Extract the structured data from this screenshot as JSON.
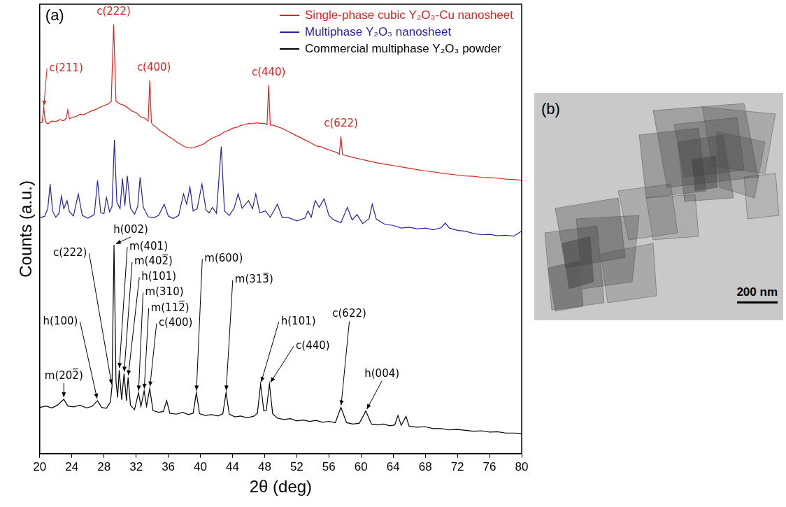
{
  "chart_data": {
    "type": "line",
    "panel_label": "(a)",
    "x_label": "2θ (deg)",
    "y_label": "Counts (a.u.)",
    "xlim": [
      20,
      80
    ],
    "xticks": [
      20,
      24,
      28,
      32,
      36,
      40,
      44,
      48,
      52,
      56,
      60,
      64,
      68,
      72,
      76,
      80
    ],
    "ylim": [
      0,
      100
    ],
    "tick_labels": "x",
    "grid": false,
    "legend": "upper right",
    "series": [
      {
        "name": "Single-phase cubic Y₂O₃-Cu nanosheet",
        "color": "#e02020",
        "x": [
          20.0,
          20.3,
          20.5,
          20.7,
          21.0,
          21.5,
          22.0,
          22.5,
          23.0,
          23.3,
          23.5,
          23.7,
          24.0,
          24.5,
          25.0,
          25.5,
          26.0,
          26.5,
          27.0,
          27.5,
          28.0,
          28.5,
          28.9,
          29.2,
          29.5,
          30.0,
          30.5,
          31.0,
          31.5,
          32.0,
          32.5,
          33.0,
          33.5,
          33.7,
          33.9,
          34.0,
          34.5,
          35.0,
          35.5,
          36.0,
          36.5,
          37.0,
          37.5,
          38.0,
          38.5,
          39.0,
          39.5,
          40.0,
          40.5,
          41.0,
          41.5,
          42.0,
          42.5,
          43.0,
          43.5,
          44.0,
          44.5,
          45.0,
          45.5,
          46.0,
          46.5,
          47.0,
          47.5,
          48.0,
          48.3,
          48.5,
          48.7,
          49.0,
          49.5,
          50.0,
          50.5,
          51.0,
          51.5,
          52.0,
          52.5,
          53.0,
          53.5,
          54.0,
          54.5,
          55.0,
          55.5,
          56.0,
          56.5,
          57.0,
          57.3,
          57.5,
          57.7,
          58.0,
          59.0,
          60.0,
          61.0,
          62.0,
          63.0,
          64.0,
          65.0,
          66.0,
          67.0,
          68.0,
          69.0,
          70.0,
          71.0,
          72.0,
          73.0,
          74.0,
          75.0,
          76.0,
          77.0,
          78.0,
          79.0,
          80.0
        ],
        "values": [
          73.6,
          73.7,
          77.0,
          73.8,
          73.4,
          74.0,
          73.9,
          74.3,
          74.1,
          74.6,
          76.5,
          74.5,
          74.8,
          75.0,
          75.5,
          75.4,
          75.9,
          76.3,
          76.6,
          77.1,
          77.4,
          77.8,
          78.3,
          95.5,
          78.4,
          77.8,
          77.5,
          76.9,
          76.2,
          75.9,
          75.0,
          74.7,
          74.0,
          83.0,
          73.8,
          73.3,
          72.6,
          71.8,
          71.3,
          70.6,
          70.1,
          69.4,
          68.9,
          68.3,
          68.1,
          68.0,
          68.3,
          68.6,
          69.0,
          69.7,
          70.2,
          70.6,
          71.0,
          71.6,
          71.9,
          72.4,
          72.6,
          73.0,
          73.2,
          73.5,
          73.4,
          73.6,
          73.5,
          73.5,
          73.2,
          82.0,
          73.1,
          73.1,
          72.8,
          72.5,
          72.1,
          71.6,
          71.2,
          70.7,
          70.3,
          69.8,
          69.4,
          68.9,
          68.4,
          68.3,
          67.9,
          67.6,
          67.3,
          67.0,
          66.6,
          70.6,
          66.5,
          66.4,
          65.9,
          65.5,
          65.1,
          64.7,
          64.4,
          64.1,
          63.8,
          63.5,
          63.2,
          62.9,
          62.7,
          62.4,
          62.2,
          62.0,
          61.8,
          61.7,
          61.5,
          61.4,
          61.3,
          61.1,
          61.0,
          60.8
        ]
      },
      {
        "name": "Multiphase Y₂O₃ nanosheet",
        "color": "#2424a8",
        "x": [
          20.0,
          20.6,
          21.0,
          21.3,
          21.6,
          22.0,
          22.4,
          22.7,
          23.0,
          23.4,
          23.7,
          24.2,
          24.8,
          25.3,
          26.0,
          26.8,
          27.2,
          27.6,
          28.0,
          28.3,
          28.7,
          29.0,
          29.3,
          29.6,
          30.0,
          30.3,
          30.6,
          30.9,
          31.3,
          31.8,
          32.2,
          32.5,
          32.9,
          33.5,
          34.2,
          34.8,
          35.5,
          36.0,
          36.6,
          37.3,
          37.9,
          38.3,
          38.7,
          39.1,
          39.6,
          40.2,
          40.7,
          41.1,
          41.5,
          42.0,
          42.6,
          43.0,
          43.6,
          44.2,
          44.7,
          45.2,
          46.0,
          46.5,
          46.9,
          47.4,
          48.1,
          48.7,
          49.6,
          50.2,
          51.0,
          52.0,
          53.0,
          53.4,
          53.8,
          54.3,
          54.8,
          55.4,
          56.0,
          56.6,
          57.5,
          58.3,
          58.9,
          59.5,
          60.2,
          61.0,
          61.4,
          61.9,
          63.0,
          64.0,
          65.0,
          66.0,
          67.0,
          68.0,
          69.0,
          70.0,
          70.5,
          71.0,
          72.0,
          73.0,
          74.0,
          75.0,
          76.0,
          77.0,
          78.0,
          79.0,
          80.0
        ],
        "values": [
          52.5,
          52.8,
          54.5,
          60.0,
          54.0,
          52.6,
          53.5,
          57.3,
          54.5,
          56.3,
          53.8,
          52.9,
          57.8,
          53.0,
          52.4,
          53.2,
          60.8,
          53.6,
          53.4,
          57.0,
          53.8,
          55.0,
          69.8,
          56.0,
          54.5,
          61.2,
          55.2,
          61.8,
          54.6,
          53.3,
          55.0,
          61.5,
          54.8,
          52.7,
          52.5,
          53.0,
          55.5,
          52.9,
          52.3,
          53.0,
          57.8,
          55.5,
          59.3,
          54.0,
          54.5,
          60.0,
          54.2,
          53.6,
          54.8,
          53.5,
          68.3,
          54.0,
          53.0,
          54.6,
          57.8,
          54.6,
          56.3,
          54.5,
          57.8,
          53.6,
          54.0,
          52.6,
          55.5,
          52.5,
          52.5,
          51.8,
          52.4,
          54.0,
          52.6,
          56.3,
          54.8,
          56.7,
          53.0,
          52.0,
          51.4,
          54.8,
          52.0,
          53.2,
          51.2,
          52.3,
          55.5,
          52.2,
          51.0,
          50.8,
          50.2,
          50.4,
          50.0,
          50.2,
          49.8,
          50.3,
          51.3,
          50.2,
          49.7,
          49.5,
          49.0,
          48.7,
          48.8,
          48.5,
          48.6,
          48.4,
          49.5
        ]
      },
      {
        "name": "Commercial multiphase Y₂O₃ powder",
        "color": "#000000",
        "x": [
          20.0,
          20.8,
          21.5,
          22.2,
          23.0,
          23.5,
          24.2,
          25.0,
          25.8,
          26.5,
          27.2,
          27.7,
          28.3,
          28.8,
          29.0,
          29.25,
          29.5,
          29.7,
          29.9,
          30.2,
          30.5,
          30.8,
          31.0,
          31.3,
          31.8,
          32.3,
          32.6,
          33.0,
          33.3,
          33.7,
          34.1,
          34.8,
          35.4,
          35.8,
          36.2,
          37.0,
          37.8,
          38.5,
          39.1,
          39.5,
          39.9,
          40.6,
          41.4,
          42.2,
          42.8,
          43.2,
          43.6,
          44.3,
          45.0,
          45.8,
          46.6,
          47.1,
          47.5,
          47.9,
          48.2,
          48.6,
          49.0,
          49.6,
          50.4,
          51.2,
          52.0,
          52.8,
          53.6,
          54.4,
          55.2,
          56.0,
          56.8,
          57.5,
          58.2,
          59.0,
          59.8,
          60.6,
          61.3,
          62.0,
          62.8,
          63.6,
          64.2,
          64.6,
          65.0,
          65.6,
          66.0,
          67.0,
          68.0,
          69.0,
          70.0,
          71.0,
          72.0,
          73.0,
          74.0,
          75.0,
          76.0,
          77.0,
          78.0,
          79.0,
          80.0
        ],
        "values": [
          10.3,
          10.6,
          10.2,
          10.8,
          12.1,
          10.6,
          10.4,
          10.8,
          10.2,
          10.5,
          11.8,
          10.3,
          10.1,
          11.5,
          15.0,
          46.5,
          16.0,
          12.5,
          18.6,
          12.0,
          17.8,
          11.8,
          17.0,
          10.8,
          9.8,
          13.6,
          10.5,
          14.0,
          10.6,
          14.5,
          9.6,
          9.2,
          9.4,
          11.8,
          9.0,
          8.8,
          9.2,
          8.7,
          9.0,
          13.6,
          8.9,
          8.5,
          8.7,
          8.4,
          8.9,
          13.6,
          8.8,
          8.2,
          8.4,
          8.0,
          8.3,
          9.0,
          15.5,
          9.5,
          9.6,
          15.5,
          8.9,
          7.9,
          7.6,
          7.8,
          7.3,
          7.5,
          7.2,
          7.4,
          7.0,
          7.2,
          6.9,
          10.3,
          6.9,
          6.6,
          6.8,
          9.5,
          6.6,
          6.4,
          6.6,
          6.2,
          6.4,
          8.5,
          6.3,
          8.3,
          6.1,
          5.9,
          6.0,
          5.6,
          5.6,
          5.3,
          5.4,
          5.2,
          5.0,
          5.1,
          4.8,
          4.9,
          4.6,
          4.6,
          4.5
        ]
      }
    ],
    "annotations": [
      {
        "text": "c(211)",
        "x": 20.5,
        "y": 77.0,
        "series": "Single-phase cubic Y₂O₃-Cu nanosheet"
      },
      {
        "text": "c(222)",
        "x": 29.2,
        "y": 95.5,
        "series": "Single-phase cubic Y₂O₃-Cu nanosheet"
      },
      {
        "text": "c(400)",
        "x": 33.7,
        "y": 83.0,
        "series": "Single-phase cubic Y₂O₃-Cu nanosheet"
      },
      {
        "text": "c(440)",
        "x": 48.5,
        "y": 82.0,
        "series": "Single-phase cubic Y₂O₃-Cu nanosheet"
      },
      {
        "text": "c(622)",
        "x": 57.5,
        "y": 70.6,
        "series": "Single-phase cubic Y₂O₃-Cu nanosheet"
      },
      {
        "text": "m(202̅)",
        "x": 23.0,
        "y": 12.1,
        "series": "Commercial multiphase Y₂O₃ powder"
      },
      {
        "text": "h(100)",
        "x": 27.2,
        "y": 11.8,
        "series": "Commercial multiphase Y₂O₃ powder"
      },
      {
        "text": "c(222)",
        "x": 29.0,
        "y": 15.0,
        "series": "Commercial multiphase Y₂O₃ powder"
      },
      {
        "text": "h(002)",
        "x": 29.25,
        "y": 46.5,
        "series": "Commercial multiphase Y₂O₃ powder"
      },
      {
        "text": "m(401)",
        "x": 29.9,
        "y": 18.6,
        "series": "Commercial multiphase Y₂O₃ powder"
      },
      {
        "text": "m(402̅)",
        "x": 30.5,
        "y": 17.8,
        "series": "Commercial multiphase Y₂O₃ powder"
      },
      {
        "text": "h(101)",
        "x": 31.0,
        "y": 17.0,
        "series": "Commercial multiphase Y₂O₃ powder"
      },
      {
        "text": "m(310)",
        "x": 32.3,
        "y": 13.6,
        "series": "Commercial multiphase Y₂O₃ powder"
      },
      {
        "text": "m(112̅)",
        "x": 33.0,
        "y": 14.0,
        "series": "Commercial multiphase Y₂O₃ powder"
      },
      {
        "text": "c(400)",
        "x": 33.7,
        "y": 14.5,
        "series": "Commercial multiphase Y₂O₃ powder"
      },
      {
        "text": "m(600)",
        "x": 39.5,
        "y": 13.6,
        "series": "Commercial multiphase Y₂O₃ powder"
      },
      {
        "text": "m(313̅)",
        "x": 43.2,
        "y": 13.6,
        "series": "Commercial multiphase Y₂O₃ powder"
      },
      {
        "text": "h(101)",
        "x": 47.5,
        "y": 15.5,
        "series": "Commercial multiphase Y₂O₃ powder"
      },
      {
        "text": "c(440)",
        "x": 48.6,
        "y": 15.5,
        "series": "Commercial multiphase Y₂O₃ powder"
      },
      {
        "text": "c(622)",
        "x": 57.5,
        "y": 10.3,
        "series": "Commercial multiphase Y₂O₃ powder"
      },
      {
        "text": "h(004)",
        "x": 60.6,
        "y": 9.5,
        "series": "Commercial multiphase Y₂O₃ powder"
      }
    ]
  },
  "image": {
    "label": "(b)",
    "scale_bar": "200 nm"
  }
}
